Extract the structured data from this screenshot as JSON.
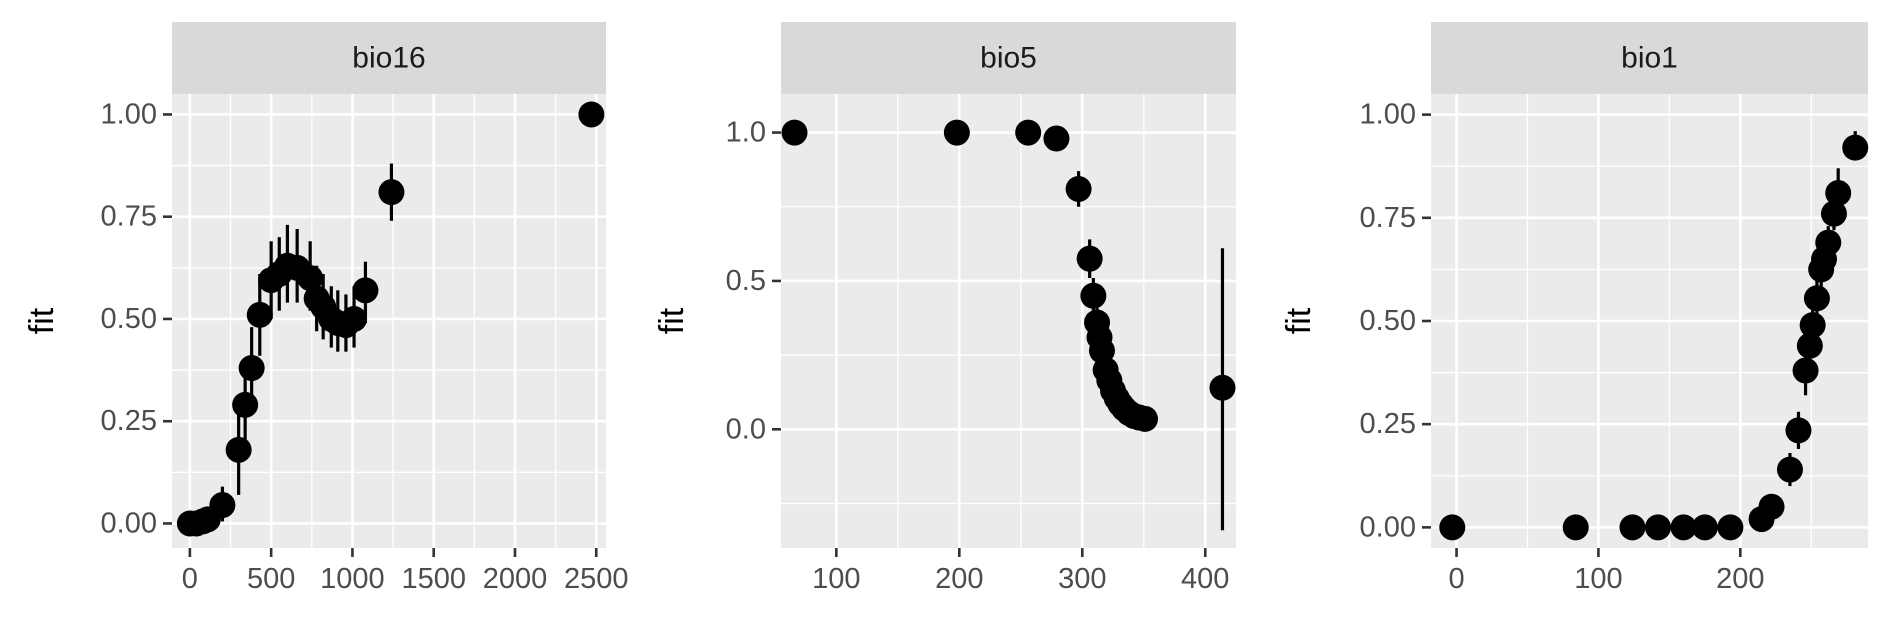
{
  "chart_data": [
    {
      "type": "scatter",
      "title": "bio16",
      "ylabel": "fit",
      "xlabel": "",
      "xlim": [
        -110,
        2560
      ],
      "ylim": [
        -0.06,
        1.05
      ],
      "xticks": [
        0,
        500,
        1000,
        1500,
        2000,
        2500
      ],
      "xtick_labels": [
        "0",
        "500",
        "1000",
        "1500",
        "2000",
        "2500"
      ],
      "yticks": [
        0,
        0.25,
        0.5,
        0.75,
        1
      ],
      "ytick_labels": [
        "0.00",
        "0.25",
        "0.50",
        "0.75",
        "1.00"
      ],
      "points": [
        {
          "x": 0,
          "y": 0.0,
          "lo": -0.005,
          "hi": 0.005
        },
        {
          "x": 40,
          "y": 0.0,
          "lo": -0.005,
          "hi": 0.008
        },
        {
          "x": 80,
          "y": 0.005,
          "lo": -0.005,
          "hi": 0.015
        },
        {
          "x": 110,
          "y": 0.01,
          "lo": -0.005,
          "hi": 0.025
        },
        {
          "x": 200,
          "y": 0.045,
          "lo": 0.005,
          "hi": 0.09
        },
        {
          "x": 300,
          "y": 0.18,
          "lo": 0.07,
          "hi": 0.28
        },
        {
          "x": 340,
          "y": 0.29,
          "lo": 0.18,
          "hi": 0.39
        },
        {
          "x": 380,
          "y": 0.38,
          "lo": 0.27,
          "hi": 0.48
        },
        {
          "x": 430,
          "y": 0.51,
          "lo": 0.41,
          "hi": 0.61
        },
        {
          "x": 500,
          "y": 0.595,
          "lo": 0.5,
          "hi": 0.69
        },
        {
          "x": 550,
          "y": 0.61,
          "lo": 0.52,
          "hi": 0.7
        },
        {
          "x": 600,
          "y": 0.63,
          "lo": 0.54,
          "hi": 0.73
        },
        {
          "x": 660,
          "y": 0.625,
          "lo": 0.54,
          "hi": 0.72
        },
        {
          "x": 740,
          "y": 0.6,
          "lo": 0.52,
          "hi": 0.69
        },
        {
          "x": 780,
          "y": 0.55,
          "lo": 0.47,
          "hi": 0.63
        },
        {
          "x": 820,
          "y": 0.53,
          "lo": 0.45,
          "hi": 0.61
        },
        {
          "x": 870,
          "y": 0.5,
          "lo": 0.43,
          "hi": 0.58
        },
        {
          "x": 910,
          "y": 0.49,
          "lo": 0.42,
          "hi": 0.57
        },
        {
          "x": 960,
          "y": 0.485,
          "lo": 0.42,
          "hi": 0.56
        },
        {
          "x": 1010,
          "y": 0.5,
          "lo": 0.43,
          "hi": 0.58
        },
        {
          "x": 1080,
          "y": 0.57,
          "lo": 0.49,
          "hi": 0.64
        },
        {
          "x": 1240,
          "y": 0.81,
          "lo": 0.74,
          "hi": 0.88
        },
        {
          "x": 2470,
          "y": 1.0,
          "lo": 0.995,
          "hi": 1.005
        }
      ]
    },
    {
      "type": "scatter",
      "title": "bio5",
      "ylabel": "fit",
      "xlabel": "",
      "xlim": [
        55,
        425
      ],
      "ylim": [
        -0.4,
        1.13
      ],
      "xticks": [
        100,
        200,
        300,
        400
      ],
      "xtick_labels": [
        "100",
        "200",
        "300",
        "400"
      ],
      "yticks": [
        0,
        0.5,
        1
      ],
      "ytick_labels": [
        "0.0",
        "0.5",
        "1.0"
      ],
      "points": [
        {
          "x": 66,
          "y": 1.0,
          "lo": 0.995,
          "hi": 1.005
        },
        {
          "x": 198,
          "y": 1.0,
          "lo": 0.995,
          "hi": 1.005
        },
        {
          "x": 256,
          "y": 1.0,
          "lo": 0.99,
          "hi": 1.01
        },
        {
          "x": 279,
          "y": 0.98,
          "lo": 0.96,
          "hi": 1.0
        },
        {
          "x": 297,
          "y": 0.81,
          "lo": 0.75,
          "hi": 0.87
        },
        {
          "x": 306,
          "y": 0.575,
          "lo": 0.51,
          "hi": 0.64
        },
        {
          "x": 309,
          "y": 0.45,
          "lo": 0.39,
          "hi": 0.51
        },
        {
          "x": 312,
          "y": 0.36,
          "lo": 0.31,
          "hi": 0.41
        },
        {
          "x": 314,
          "y": 0.31,
          "lo": 0.27,
          "hi": 0.35
        },
        {
          "x": 316,
          "y": 0.265,
          "lo": 0.23,
          "hi": 0.3
        },
        {
          "x": 319,
          "y": 0.2,
          "lo": 0.17,
          "hi": 0.23
        },
        {
          "x": 322,
          "y": 0.165,
          "lo": 0.14,
          "hi": 0.19
        },
        {
          "x": 325,
          "y": 0.13,
          "lo": 0.11,
          "hi": 0.15
        },
        {
          "x": 328,
          "y": 0.105,
          "lo": 0.09,
          "hi": 0.12
        },
        {
          "x": 331,
          "y": 0.085,
          "lo": 0.07,
          "hi": 0.1
        },
        {
          "x": 334,
          "y": 0.07,
          "lo": 0.06,
          "hi": 0.08
        },
        {
          "x": 338,
          "y": 0.055,
          "lo": 0.045,
          "hi": 0.065
        },
        {
          "x": 342,
          "y": 0.045,
          "lo": 0.035,
          "hi": 0.055
        },
        {
          "x": 346,
          "y": 0.04,
          "lo": 0.03,
          "hi": 0.05
        },
        {
          "x": 351,
          "y": 0.035,
          "lo": 0.025,
          "hi": 0.045
        },
        {
          "x": 414,
          "y": 0.14,
          "lo": -0.34,
          "hi": 0.61
        }
      ]
    },
    {
      "type": "scatter",
      "title": "bio1",
      "ylabel": "fit",
      "xlabel": "",
      "xlim": [
        -18,
        290
      ],
      "ylim": [
        -0.05,
        1.05
      ],
      "xticks": [
        0,
        100,
        200
      ],
      "xtick_labels": [
        "0",
        "100",
        "200"
      ],
      "yticks": [
        0,
        0.25,
        0.5,
        0.75,
        1
      ],
      "ytick_labels": [
        "0.00",
        "0.25",
        "0.50",
        "0.75",
        "1.00"
      ],
      "points": [
        {
          "x": -3,
          "y": 0.0,
          "lo": -0.005,
          "hi": 0.005
        },
        {
          "x": 84,
          "y": 0.0,
          "lo": -0.005,
          "hi": 0.005
        },
        {
          "x": 124,
          "y": 0.0,
          "lo": -0.005,
          "hi": 0.005
        },
        {
          "x": 142,
          "y": 0.0,
          "lo": -0.005,
          "hi": 0.005
        },
        {
          "x": 160,
          "y": 0.0,
          "lo": -0.005,
          "hi": 0.005
        },
        {
          "x": 175,
          "y": 0.0,
          "lo": -0.005,
          "hi": 0.005
        },
        {
          "x": 193,
          "y": 0.0,
          "lo": -0.005,
          "hi": 0.005
        },
        {
          "x": 215,
          "y": 0.02,
          "lo": 0.01,
          "hi": 0.03
        },
        {
          "x": 222,
          "y": 0.05,
          "lo": 0.035,
          "hi": 0.065
        },
        {
          "x": 235,
          "y": 0.14,
          "lo": 0.1,
          "hi": 0.18
        },
        {
          "x": 241,
          "y": 0.235,
          "lo": 0.19,
          "hi": 0.28
        },
        {
          "x": 246,
          "y": 0.38,
          "lo": 0.32,
          "hi": 0.44
        },
        {
          "x": 249,
          "y": 0.44,
          "lo": 0.39,
          "hi": 0.49
        },
        {
          "x": 251,
          "y": 0.49,
          "lo": 0.44,
          "hi": 0.54
        },
        {
          "x": 254,
          "y": 0.555,
          "lo": 0.51,
          "hi": 0.6
        },
        {
          "x": 257,
          "y": 0.625,
          "lo": 0.58,
          "hi": 0.67
        },
        {
          "x": 259,
          "y": 0.65,
          "lo": 0.61,
          "hi": 0.69
        },
        {
          "x": 262,
          "y": 0.69,
          "lo": 0.65,
          "hi": 0.73
        },
        {
          "x": 266,
          "y": 0.76,
          "lo": 0.72,
          "hi": 0.8
        },
        {
          "x": 269,
          "y": 0.81,
          "lo": 0.76,
          "hi": 0.87
        },
        {
          "x": 281,
          "y": 0.92,
          "lo": 0.89,
          "hi": 0.96
        }
      ]
    }
  ]
}
